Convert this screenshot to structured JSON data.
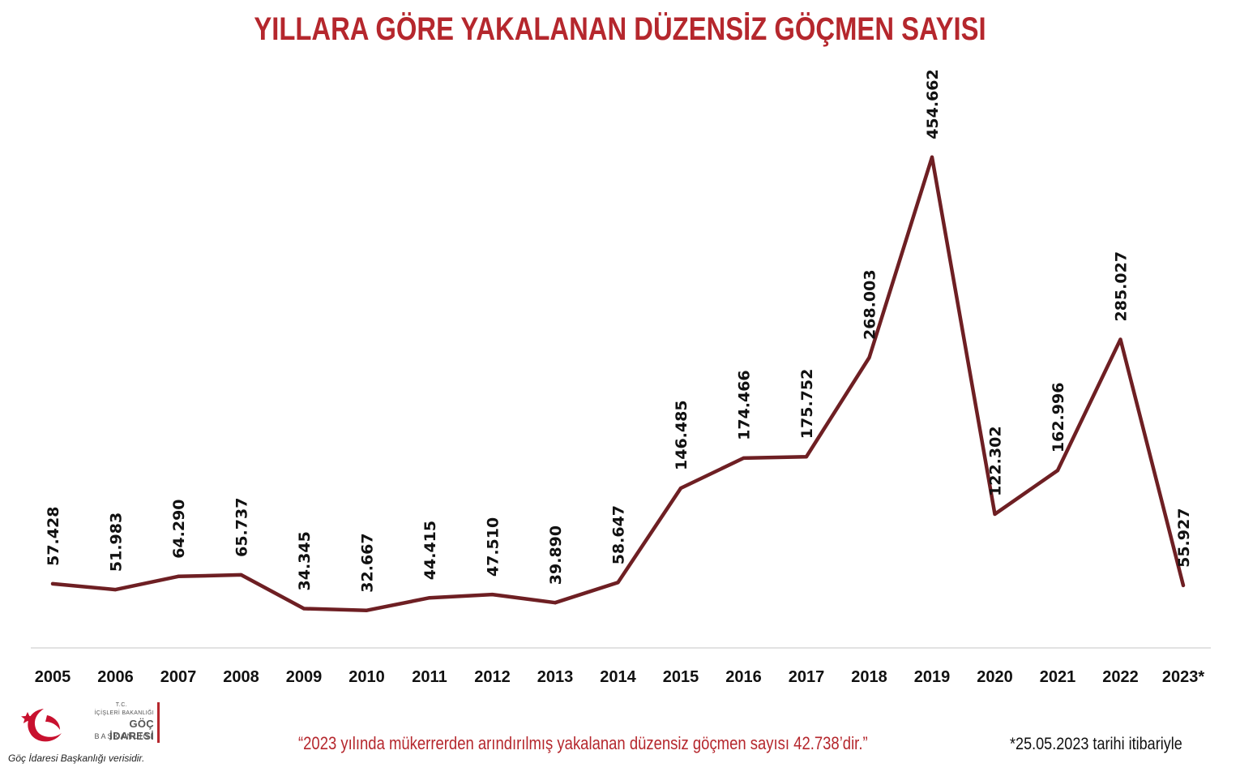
{
  "header": {
    "title": "YILLARA GÖRE YAKALANAN DÜZENSİZ GÖÇMEN SAYISI"
  },
  "chart_data": {
    "type": "line",
    "title": "YILLARA GÖRE YAKALANAN DÜZENSİZ GÖÇMEN SAYISI",
    "xlabel": "",
    "ylabel": "",
    "categories": [
      "2005",
      "2006",
      "2007",
      "2008",
      "2009",
      "2010",
      "2011",
      "2012",
      "2013",
      "2014",
      "2015",
      "2016",
      "2017",
      "2018",
      "2019",
      "2020",
      "2021",
      "2022",
      "2023*"
    ],
    "values": [
      57428,
      51983,
      64290,
      65737,
      34345,
      32667,
      44415,
      47510,
      39890,
      58647,
      146485,
      174466,
      175752,
      268003,
      454662,
      122302,
      162996,
      285027,
      55927
    ],
    "value_labels": [
      "57.428",
      "51.983",
      "64.290",
      "65.737",
      "34.345",
      "32.667",
      "44.415",
      "47.510",
      "39.890",
      "58.647",
      "146.485",
      "174.466",
      "175.752",
      "268.003",
      "454.662",
      "122.302",
      "162.996",
      "285.027",
      "55.927"
    ],
    "ylim": [
      0,
      490000
    ],
    "grid": false,
    "legend": "none",
    "line_color": "#6e1f23"
  },
  "footer": {
    "logo": {
      "tc": "T.C.",
      "ministry": "İÇİŞLERİ BAKANLIĞI",
      "name": "GÖÇ İDARESİ",
      "sub": "BAŞKANLIĞI"
    },
    "source": "Göç İdaresi Başkanlığı verisidir.",
    "quote": "“2023 yılında mükerrerden arındırılmış yakalanan düzensiz göçmen sayısı 42.738’dir.”",
    "date_note": "*25.05.2023 tarihi itibariyle"
  },
  "colors": {
    "title": "#b5272d",
    "line": "#6e1f23",
    "logo_red": "#c8102e"
  }
}
